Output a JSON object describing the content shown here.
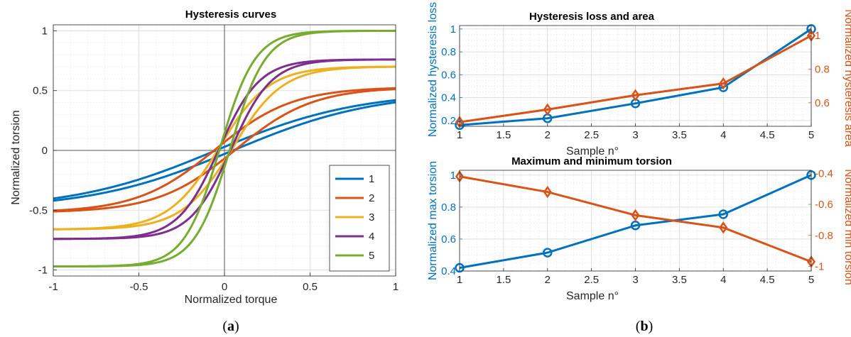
{
  "colors": {
    "blue": "#0072bd",
    "orange": "#d95319",
    "yellow": "#edb120",
    "purple": "#7e2f8e",
    "green": "#77ac30"
  },
  "captions": [
    {
      "open": "(",
      "letter": "a",
      "close": ")"
    },
    {
      "open": "(",
      "letter": "b",
      "close": ")"
    }
  ],
  "chart_data": [
    {
      "type": "line",
      "title": "Hysteresis curves",
      "xlabel": "Normalized torque",
      "ylabel": "Normalized torsion",
      "xlim": [
        -1,
        1
      ],
      "ylim": [
        -1.05,
        1.05
      ],
      "xticks": [
        -1,
        -0.5,
        0,
        0.5,
        1
      ],
      "xtick_labels": [
        "-1",
        "-0.5",
        "0",
        "0.5",
        "1"
      ],
      "yticks": [
        -1,
        -0.5,
        0,
        0.5,
        1
      ],
      "ytick_labels": [
        "-1",
        "-0.5",
        "0",
        "0.5",
        "1"
      ],
      "grid": true,
      "legend": "bottom-right",
      "series": [
        {
          "name": "1",
          "color": "#0072bd",
          "max_torsion": 0.42,
          "min_torsion": -0.42,
          "shape": 1.2,
          "shift": 0.05
        },
        {
          "name": "2",
          "color": "#d95319",
          "max_torsion": 0.52,
          "min_torsion": -0.51,
          "shape": 2.2,
          "shift": 0.06
        },
        {
          "name": "3",
          "color": "#edb120",
          "max_torsion": 0.7,
          "min_torsion": -0.66,
          "shape": 3.4,
          "shift": 0.04
        },
        {
          "name": "4",
          "color": "#7e2f8e",
          "max_torsion": 0.76,
          "min_torsion": -0.74,
          "shape": 4.2,
          "shift": 0.035
        },
        {
          "name": "5",
          "color": "#77ac30",
          "max_torsion": 1.0,
          "min_torsion": -0.97,
          "shape": 4.8,
          "shift": 0.03
        }
      ]
    },
    {
      "type": "line",
      "title": "Hysteresis loss and area",
      "xlabel": "Sample n°",
      "ylabel_left": "Normalized hysteresis loss",
      "ylabel_right": "Normalized hysteresis area",
      "xlim": [
        1,
        5
      ],
      "ylim_left": [
        0.15,
        1.03
      ],
      "ylim_right": [
        0.46,
        1.06
      ],
      "xticks": [
        1,
        1.5,
        2,
        2.5,
        3,
        3.5,
        4,
        4.5,
        5
      ],
      "xtick_labels": [
        "1",
        "1.5",
        "2",
        "2.5",
        "3",
        "3.5",
        "4",
        "4.5",
        "5"
      ],
      "yticks_left": [
        0.2,
        0.4,
        0.6,
        0.8,
        1
      ],
      "ytick_labels_left": [
        "0.2",
        "0.4",
        "0.6",
        "0.8",
        "1"
      ],
      "yticks_right": [
        0.6,
        0.8,
        1
      ],
      "ytick_labels_right": [
        "0.6",
        "0.8",
        "1"
      ],
      "grid": true,
      "series": [
        {
          "axis": "left",
          "color": "#0072bd",
          "marker": "circle",
          "x": [
            1,
            2,
            3,
            4,
            5
          ],
          "y": [
            0.16,
            0.22,
            0.35,
            0.49,
            1.0
          ]
        },
        {
          "axis": "right",
          "color": "#d95319",
          "marker": "diamond",
          "x": [
            1,
            2,
            3,
            4,
            5
          ],
          "y": [
            0.485,
            0.56,
            0.645,
            0.715,
            1.0
          ]
        }
      ]
    },
    {
      "type": "line",
      "title": "Maximum and minimum torsion",
      "xlabel": "Sample n°",
      "ylabel_left": "Normalized max torsion",
      "ylabel_right": "Normalized min torsion",
      "xlim": [
        1,
        5
      ],
      "ylim_left": [
        0.4,
        1.03
      ],
      "ylim_right": [
        -1.03,
        -0.38
      ],
      "xticks": [
        1,
        1.5,
        2,
        2.5,
        3,
        3.5,
        4,
        4.5,
        5
      ],
      "xtick_labels": [
        "1",
        "1.5",
        "2",
        "2.5",
        "3",
        "3.5",
        "4",
        "4.5",
        "5"
      ],
      "yticks_left": [
        0.4,
        0.6,
        0.8,
        1
      ],
      "ytick_labels_left": [
        "0.4",
        "0.6",
        "0.8",
        "1"
      ],
      "yticks_right": [
        -1,
        -0.8,
        -0.6,
        -0.4
      ],
      "ytick_labels_right": [
        "-1",
        "-0.8",
        "-0.6",
        "-0.4"
      ],
      "grid": true,
      "series": [
        {
          "axis": "left",
          "color": "#0072bd",
          "marker": "circle",
          "x": [
            1,
            2,
            3,
            4,
            5
          ],
          "y": [
            0.42,
            0.515,
            0.685,
            0.755,
            1.0
          ]
        },
        {
          "axis": "right",
          "color": "#d95319",
          "marker": "diamond",
          "x": [
            1,
            2,
            3,
            4,
            5
          ],
          "y": [
            -0.42,
            -0.52,
            -0.67,
            -0.75,
            -0.97
          ]
        }
      ]
    }
  ]
}
